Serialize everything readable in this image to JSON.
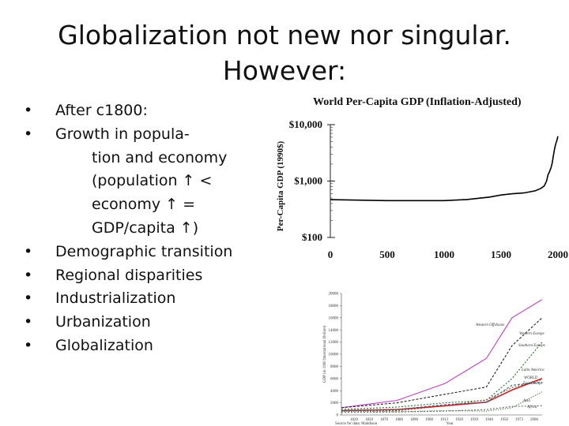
{
  "slide": {
    "title_line1": "Globalization not new nor singular.",
    "title_line2": "However:",
    "bullets": [
      {
        "lines": [
          "After c1800:"
        ]
      },
      {
        "lines": [
          "Growth in popula-",
          "tion and economy",
          "(population ↑ <",
          "economy ↑ =",
          "GDP/capita ↑)"
        ]
      },
      {
        "lines": [
          "Demographic transition"
        ]
      },
      {
        "lines": [
          "Regional disparities"
        ]
      },
      {
        "lines": [
          "Industrialization"
        ]
      },
      {
        "lines": [
          "Urbanization"
        ]
      },
      {
        "lines": [
          "Globalization"
        ]
      }
    ]
  },
  "chart_data": [
    {
      "type": "line",
      "title": "World Per-Capita GDP (Inflation-Adjusted)",
      "ylabel": "Per-Capita GDP (1990$)",
      "xlabel": "",
      "yscale": "log",
      "ylim": [
        100,
        10000
      ],
      "xlim": [
        0,
        2000
      ],
      "x_ticks": [
        "0",
        "500",
        "1000",
        "1500",
        "2000"
      ],
      "y_ticks": [
        "$100",
        "$1,000",
        "$10,000"
      ],
      "series": [
        {
          "color": "#000000",
          "x": [
            0,
            500,
            1000,
            1200,
            1400,
            1500,
            1600,
            1700,
            1800,
            1850,
            1880,
            1900,
            1913,
            1925,
            1940,
            1950,
            1960,
            1970,
            1980,
            1990,
            2000
          ],
          "y": [
            467,
            450,
            450,
            470,
            520,
            565,
            595,
            615,
            670,
            740,
            820,
            1000,
            1300,
            1450,
            1750,
            2100,
            2800,
            3700,
            4500,
            5200,
            6200
          ]
        }
      ],
      "grid": false
    },
    {
      "type": "line",
      "title": "",
      "ylabel": "GDP (in 1990 International Dollars)",
      "xlabel": "Year",
      "source": "Source for data: Maddison",
      "ylim": [
        0,
        20000
      ],
      "xlim": [
        1820,
        2000
      ],
      "x_ticks": [
        "1820",
        "1850",
        "1870",
        "1880",
        "1890",
        "1900",
        "1913",
        "1920",
        "1929",
        "1940",
        "1950",
        "1973",
        "2000"
      ],
      "y_ticks": [
        "0",
        "2000",
        "4000",
        "6000",
        "8000",
        "10000",
        "12000",
        "14000",
        "16000",
        "18000",
        "20000"
      ],
      "series": [
        {
          "name": "Western Offshoots",
          "color": "#c040c0",
          "x": [
            1820,
            1870,
            1913,
            1950,
            1973,
            2000
          ],
          "y": [
            1200,
            2400,
            5200,
            9300,
            16000,
            19000
          ]
        },
        {
          "name": "Western Europe",
          "color": "#222222",
          "x": [
            1820,
            1870,
            1913,
            1950,
            1973,
            2000
          ],
          "y": [
            1200,
            2000,
            3400,
            4600,
            11400,
            16000
          ]
        },
        {
          "name": "Southern Europe",
          "color": "#2a6a2a",
          "x": [
            1820,
            1870,
            1913,
            1950,
            1973,
            2000
          ],
          "y": [
            900,
            1300,
            2000,
            2400,
            6000,
            12000
          ]
        },
        {
          "name": "Latin America",
          "color": "#8a5a2a",
          "x": [
            1820,
            1870,
            1913,
            1950,
            1973,
            2000
          ],
          "y": [
            700,
            700,
            1500,
            2500,
            4500,
            5800
          ]
        },
        {
          "name": "WORLD",
          "color": "#d02020",
          "x": [
            1820,
            1870,
            1913,
            1950,
            1973,
            2000
          ],
          "y": [
            700,
            900,
            1500,
            2100,
            4100,
            6000
          ]
        },
        {
          "name": "East Europe",
          "color": "#2a6a8a",
          "x": [
            1820,
            1870,
            1913,
            1950,
            1973,
            2000
          ],
          "y": [
            700,
            900,
            1700,
            2100,
            4900,
            5400
          ]
        },
        {
          "name": "Asia",
          "color": "#5a8a5a",
          "x": [
            1820,
            1870,
            1913,
            1950,
            1973,
            2000
          ],
          "y": [
            580,
            550,
            700,
            630,
            1200,
            3800
          ]
        },
        {
          "name": "Africa",
          "color": "#6a6a6a",
          "x": [
            1820,
            1870,
            1913,
            1950,
            1973,
            2000
          ],
          "y": [
            420,
            500,
            640,
            890,
            1400,
            1500
          ]
        }
      ],
      "grid": false
    }
  ]
}
